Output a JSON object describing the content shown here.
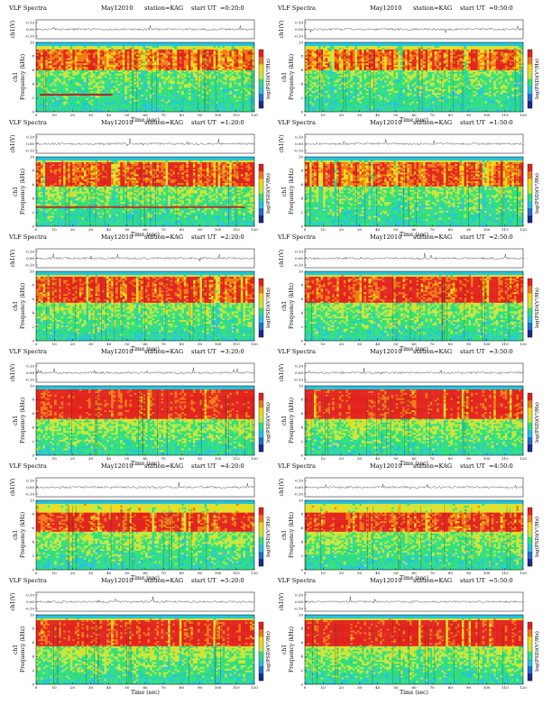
{
  "page": {
    "title_prefix": "VLF Spectra",
    "date": "May12010",
    "station": "station=KAG",
    "ut_label": "start UT"
  },
  "labels": {
    "top_ylabel": "ch1(V)",
    "spec_ylabel_channel": "ch1",
    "spec_ylabel": "Frequency (kHz)",
    "xlabel": "Time (sec)",
    "colorbar_label": "log(PSD)(V²/Hz)"
  },
  "colors": {
    "spectrogram_ramp": [
      "#1a2a8c",
      "#1f6fd0",
      "#23c4de",
      "#2fe07a",
      "#c9e63a",
      "#f5d914",
      "#f07a15",
      "#e2221c"
    ],
    "waveform": "#000000"
  },
  "chart_data": [
    {
      "type": "heatmap",
      "start_ut": "=0:20:0",
      "xlabel": "Time (sec)",
      "ylabel": "Frequency (kHz)",
      "xlim": [
        0,
        120
      ],
      "ylim": [
        0,
        10
      ],
      "x_ticks": [
        0,
        10,
        20,
        30,
        40,
        50,
        60,
        70,
        80,
        90,
        100,
        110,
        120
      ],
      "y_ticks": [
        0,
        2,
        4,
        6,
        8,
        10
      ],
      "wave_ticks": [
        "0.10",
        "0.00",
        "-0.10"
      ],
      "base_band_khz": [
        6,
        9
      ],
      "intensity": 0.5,
      "artifact_line_khz": 2.5,
      "artifact_span_sec": [
        2,
        42
      ]
    },
    {
      "type": "heatmap",
      "start_ut": "=0:50:0",
      "xlabel": "Time (sec)",
      "ylabel": "Frequency (kHz)",
      "xlim": [
        0,
        120
      ],
      "ylim": [
        0,
        10
      ],
      "x_ticks": [
        0,
        10,
        20,
        30,
        40,
        50,
        60,
        70,
        80,
        90,
        100,
        110,
        120
      ],
      "y_ticks": [
        0,
        2,
        4,
        6,
        8,
        10
      ],
      "wave_ticks": [
        "0.10",
        "0.00",
        "-0.10"
      ],
      "base_band_khz": [
        6,
        9
      ],
      "intensity": 0.5
    },
    {
      "type": "heatmap",
      "start_ut": "=1:20:0",
      "xlabel": "Time (sec)",
      "ylabel": "Frequency (kHz)",
      "xlim": [
        0,
        120
      ],
      "ylim": [
        0,
        10
      ],
      "x_ticks": [
        0,
        10,
        20,
        30,
        40,
        50,
        60,
        70,
        80,
        90,
        100,
        110,
        120
      ],
      "y_ticks": [
        0,
        2,
        4,
        6,
        8,
        10
      ],
      "wave_ticks": [
        "0.10",
        "0.00",
        "-0.10"
      ],
      "base_band_khz": [
        5.8,
        9.2
      ],
      "intensity": 0.6,
      "artifact_line_khz": 2.8,
      "artifact_span_sec": [
        0,
        115
      ]
    },
    {
      "type": "heatmap",
      "start_ut": "=1:50:0",
      "xlabel": "Time (sec)",
      "ylabel": "Frequency (kHz)",
      "xlim": [
        0,
        120
      ],
      "ylim": [
        0,
        10
      ],
      "x_ticks": [
        0,
        10,
        20,
        30,
        40,
        50,
        60,
        70,
        80,
        90,
        100,
        110,
        120
      ],
      "y_ticks": [
        0,
        2,
        4,
        6,
        8,
        10
      ],
      "wave_ticks": [
        "0.10",
        "0.00",
        "-0.10"
      ],
      "base_band_khz": [
        5.8,
        9.2
      ],
      "intensity": 0.55
    },
    {
      "type": "heatmap",
      "start_ut": "=2:20:0",
      "xlabel": "Time (sec)",
      "ylabel": "Frequency (kHz)",
      "xlim": [
        0,
        120
      ],
      "ylim": [
        0,
        10
      ],
      "x_ticks": [
        0,
        10,
        20,
        30,
        40,
        50,
        60,
        70,
        80,
        90,
        100,
        110,
        120
      ],
      "y_ticks": [
        0,
        2,
        4,
        6,
        8,
        10
      ],
      "wave_ticks": [
        "0.10",
        "0.00",
        "-0.10"
      ],
      "base_band_khz": [
        5.5,
        9.3
      ],
      "intensity": 0.65
    },
    {
      "type": "heatmap",
      "start_ut": "=2:50:0",
      "xlabel": "Time (sec)",
      "ylabel": "Frequency (kHz)",
      "xlim": [
        0,
        120
      ],
      "ylim": [
        0,
        10
      ],
      "x_ticks": [
        0,
        10,
        20,
        30,
        40,
        50,
        60,
        70,
        80,
        90,
        100,
        110,
        120
      ],
      "y_ticks": [
        0,
        2,
        4,
        6,
        8,
        10
      ],
      "wave_ticks": [
        "0.10",
        "0.00",
        "-0.10"
      ],
      "base_band_khz": [
        5.5,
        9.3
      ],
      "intensity": 0.7
    },
    {
      "type": "heatmap",
      "start_ut": "=3:20:0",
      "xlabel": "Time (sec)",
      "ylabel": "Frequency (kHz)",
      "xlim": [
        0,
        120
      ],
      "ylim": [
        0,
        10
      ],
      "x_ticks": [
        0,
        10,
        20,
        30,
        40,
        50,
        60,
        70,
        80,
        90,
        100,
        110,
        120
      ],
      "y_ticks": [
        0,
        2,
        4,
        6,
        8,
        10
      ],
      "wave_ticks": [
        "0.10",
        "0.00",
        "-0.10"
      ],
      "base_band_khz": [
        5.2,
        9.5
      ],
      "intensity": 0.8
    },
    {
      "type": "heatmap",
      "start_ut": "=3:50:0",
      "xlabel": "Time (sec)",
      "ylabel": "Frequency (kHz)",
      "xlim": [
        0,
        120
      ],
      "ylim": [
        0,
        10
      ],
      "x_ticks": [
        0,
        10,
        20,
        30,
        40,
        50,
        60,
        70,
        80,
        90,
        100,
        110,
        120
      ],
      "y_ticks": [
        0,
        2,
        4,
        6,
        8,
        10
      ],
      "wave_ticks": [
        "0.10",
        "0.00",
        "-0.10"
      ],
      "base_band_khz": [
        5.2,
        9.5
      ],
      "intensity": 0.8
    },
    {
      "type": "heatmap",
      "start_ut": "=4:20:0",
      "xlabel": "Time (sec)",
      "ylabel": "Frequency (kHz)",
      "xlim": [
        0,
        120
      ],
      "ylim": [
        0,
        10
      ],
      "x_ticks": [
        0,
        10,
        20,
        30,
        40,
        50,
        60,
        70,
        80,
        90,
        100,
        110,
        120
      ],
      "y_ticks": [
        0,
        2,
        4,
        6,
        8,
        10
      ],
      "wave_ticks": [
        "0.10",
        "0.00",
        "-0.10"
      ],
      "base_band_khz": [
        5.5,
        8.3
      ],
      "intensity": 0.7
    },
    {
      "type": "heatmap",
      "start_ut": "=4:50:0",
      "xlabel": "Time (sec)",
      "ylabel": "Frequency (kHz)",
      "xlim": [
        0,
        120
      ],
      "ylim": [
        0,
        10
      ],
      "x_ticks": [
        0,
        10,
        20,
        30,
        40,
        50,
        60,
        70,
        80,
        90,
        100,
        110,
        120
      ],
      "y_ticks": [
        0,
        2,
        4,
        6,
        8,
        10
      ],
      "wave_ticks": [
        "0.10",
        "0.00",
        "-0.10"
      ],
      "base_band_khz": [
        5.5,
        8.3
      ],
      "intensity": 0.7
    },
    {
      "type": "heatmap",
      "start_ut": "=5:20:0",
      "xlabel": "Time (sec)",
      "ylabel": "Frequency (kHz)",
      "xlim": [
        0,
        120
      ],
      "ylim": [
        0,
        10
      ],
      "x_ticks": [
        0,
        10,
        20,
        30,
        40,
        50,
        60,
        70,
        80,
        90,
        100,
        110,
        120
      ],
      "y_ticks": [
        0,
        2,
        4,
        6,
        8,
        10
      ],
      "wave_ticks": [
        "0.10",
        "0.00",
        "-0.10"
      ],
      "base_band_khz": [
        5.5,
        9.2
      ],
      "intensity": 0.75
    },
    {
      "type": "heatmap",
      "start_ut": "=5:50:0",
      "xlabel": "Time (sec)",
      "ylabel": "Frequency (kHz)",
      "xlim": [
        0,
        120
      ],
      "ylim": [
        0,
        10
      ],
      "x_ticks": [
        0,
        10,
        20,
        30,
        40,
        50,
        60,
        70,
        80,
        90,
        100,
        110,
        120
      ],
      "y_ticks": [
        0,
        2,
        4,
        6,
        8,
        10
      ],
      "wave_ticks": [
        "0.10",
        "0.00",
        "-0.10"
      ],
      "base_band_khz": [
        5.5,
        9.2
      ],
      "intensity": 0.8
    }
  ]
}
